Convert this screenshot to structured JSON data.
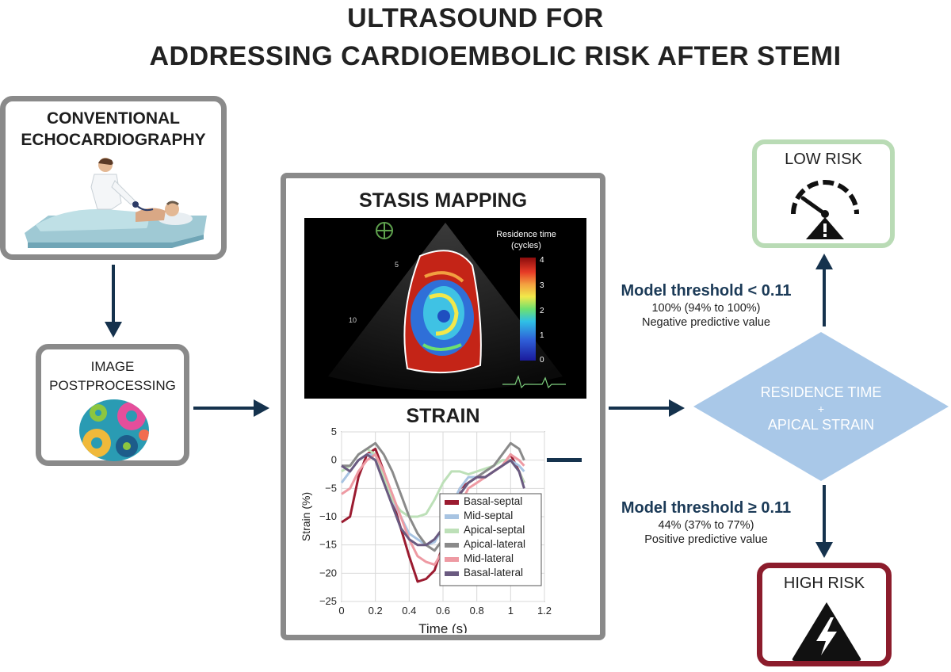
{
  "title": {
    "line1": "ULTRASOUND FOR",
    "line2": "ADDRESSING CARDIOEMBOLIC RISK AFTER STEMI"
  },
  "boxes": {
    "echo": {
      "line1": "CONVENTIONAL",
      "line2": "ECHOCARDIOGRAPHY"
    },
    "postprocessing": {
      "line1": "IMAGE",
      "line2": "POSTPROCESSING"
    },
    "stasis": {
      "title": "STASIS MAPPING"
    },
    "strain": {
      "title": "STRAIN"
    },
    "low_risk": {
      "label": "LOW RISK"
    },
    "high_risk": {
      "label": "HIGH RISK"
    }
  },
  "decision": {
    "line1": "RESIDENCE TIME",
    "line2": "+",
    "line3": "APICAL STRAIN"
  },
  "thresholds": {
    "low": {
      "title": "Model threshold < 0.11",
      "value": "100% (94% to 100%)",
      "metric": "Negative predictive value"
    },
    "high": {
      "title": "Model threshold ≥ 0.11",
      "value": "44% (37% to 77%)",
      "metric": "Positive predictive value"
    }
  },
  "stasis_map": {
    "colorbar_label_1": "Residence time",
    "colorbar_label_2": "(cycles)",
    "colorbar_ticks": [
      "4",
      "3",
      "2",
      "1",
      "0"
    ],
    "depth_marks": [
      "5",
      "10"
    ]
  },
  "colors": {
    "arrow": "#15324d",
    "box_gray": "#8a8a8a",
    "low_risk_border": "#b9dbb5",
    "high_risk_border": "#8c1c2c",
    "decision_fill": "#a9c8e8",
    "decision_text": "#ffffff"
  },
  "chart_data": {
    "type": "line",
    "title": "STRAIN",
    "xlabel": "Time (s)",
    "ylabel": "Strain (%)",
    "xlim": [
      0,
      1.2
    ],
    "ylim": [
      -25,
      5
    ],
    "xticks": [
      "0",
      "0.2",
      "0.4",
      "0.6",
      "0.8",
      "1",
      "1.2"
    ],
    "yticks": [
      "5",
      "0",
      "−5",
      "−10",
      "−15",
      "−20",
      "−25"
    ],
    "grid": true,
    "legend_position": "bottom-right",
    "series": [
      {
        "name": "Basal-septal",
        "color": "#9b1b30",
        "x": [
          0,
          0.05,
          0.1,
          0.15,
          0.2,
          0.25,
          0.3,
          0.35,
          0.4,
          0.45,
          0.5,
          0.55,
          0.6,
          0.65,
          0.7,
          0.75,
          0.8,
          0.85,
          0.9,
          0.95,
          1.0,
          1.05,
          1.08
        ],
        "y": [
          -11,
          -10,
          -3,
          1,
          2,
          -2,
          -7,
          -12,
          -17,
          -21.5,
          -21,
          -19.5,
          -15,
          -9,
          -5,
          -4,
          -3,
          -3,
          -2,
          -1,
          1,
          -2,
          -4
        ]
      },
      {
        "name": "Mid-septal",
        "color": "#a8c4e2",
        "x": [
          0,
          0.05,
          0.1,
          0.15,
          0.2,
          0.25,
          0.3,
          0.35,
          0.4,
          0.45,
          0.5,
          0.55,
          0.6,
          0.65,
          0.7,
          0.75,
          0.8,
          0.85,
          0.9,
          0.95,
          1.0,
          1.05,
          1.08
        ],
        "y": [
          -4,
          -2,
          0,
          1,
          1,
          -3,
          -7,
          -10,
          -13,
          -14,
          -15,
          -14.5,
          -12,
          -8,
          -5,
          -3,
          -3,
          -2,
          -1,
          0,
          0,
          -1,
          -2
        ]
      },
      {
        "name": "Apical-septal",
        "color": "#bde0b8",
        "x": [
          0,
          0.05,
          0.1,
          0.15,
          0.2,
          0.25,
          0.3,
          0.35,
          0.4,
          0.45,
          0.5,
          0.55,
          0.6,
          0.65,
          0.7,
          0.75,
          0.8,
          0.85,
          0.9,
          0.95,
          1.0,
          1.05,
          1.08
        ],
        "y": [
          -2,
          -1,
          1,
          2,
          1,
          -3,
          -7,
          -9,
          -10,
          -10,
          -9.5,
          -7,
          -4,
          -2,
          -2,
          -2.5,
          -2,
          -1.5,
          -1,
          0,
          0,
          -2,
          -4
        ]
      },
      {
        "name": "Apical-lateral",
        "color": "#8a8a8a",
        "x": [
          0,
          0.05,
          0.1,
          0.15,
          0.2,
          0.25,
          0.3,
          0.35,
          0.4,
          0.45,
          0.5,
          0.55,
          0.6,
          0.65,
          0.7,
          0.75,
          0.8,
          0.85,
          0.9,
          0.95,
          1.0,
          1.05,
          1.08
        ],
        "y": [
          -1,
          -1,
          1,
          2,
          3,
          1,
          -2,
          -6,
          -10,
          -13,
          -15,
          -16,
          -14,
          -10,
          -6,
          -4,
          -3,
          -2,
          -1,
          1,
          3,
          2,
          0
        ]
      },
      {
        "name": "Mid-lateral",
        "color": "#ee9aa3",
        "x": [
          0,
          0.05,
          0.1,
          0.15,
          0.2,
          0.25,
          0.3,
          0.35,
          0.4,
          0.45,
          0.5,
          0.55,
          0.6,
          0.65,
          0.7,
          0.75,
          0.8,
          0.85,
          0.9,
          0.95,
          1.0,
          1.05,
          1.08
        ],
        "y": [
          -6,
          -5,
          -2,
          0,
          1,
          -2,
          -6,
          -10,
          -14,
          -17,
          -18,
          -18.5,
          -16,
          -12,
          -8,
          -5,
          -4,
          -3,
          -2,
          -1,
          1,
          0,
          -1
        ]
      },
      {
        "name": "Basal-lateral",
        "color": "#6a5a80",
        "x": [
          0,
          0.05,
          0.1,
          0.15,
          0.2,
          0.25,
          0.3,
          0.35,
          0.4,
          0.45,
          0.5,
          0.55,
          0.6,
          0.65,
          0.7,
          0.75,
          0.8,
          0.85,
          0.9,
          0.95,
          1.0,
          1.05,
          1.08
        ],
        "y": [
          -1,
          -2,
          0,
          1,
          0,
          -4,
          -8,
          -12,
          -14,
          -15,
          -15,
          -14,
          -12,
          -9,
          -6,
          -4,
          -3,
          -3,
          -2,
          -1,
          0,
          -2,
          -5
        ]
      }
    ]
  }
}
